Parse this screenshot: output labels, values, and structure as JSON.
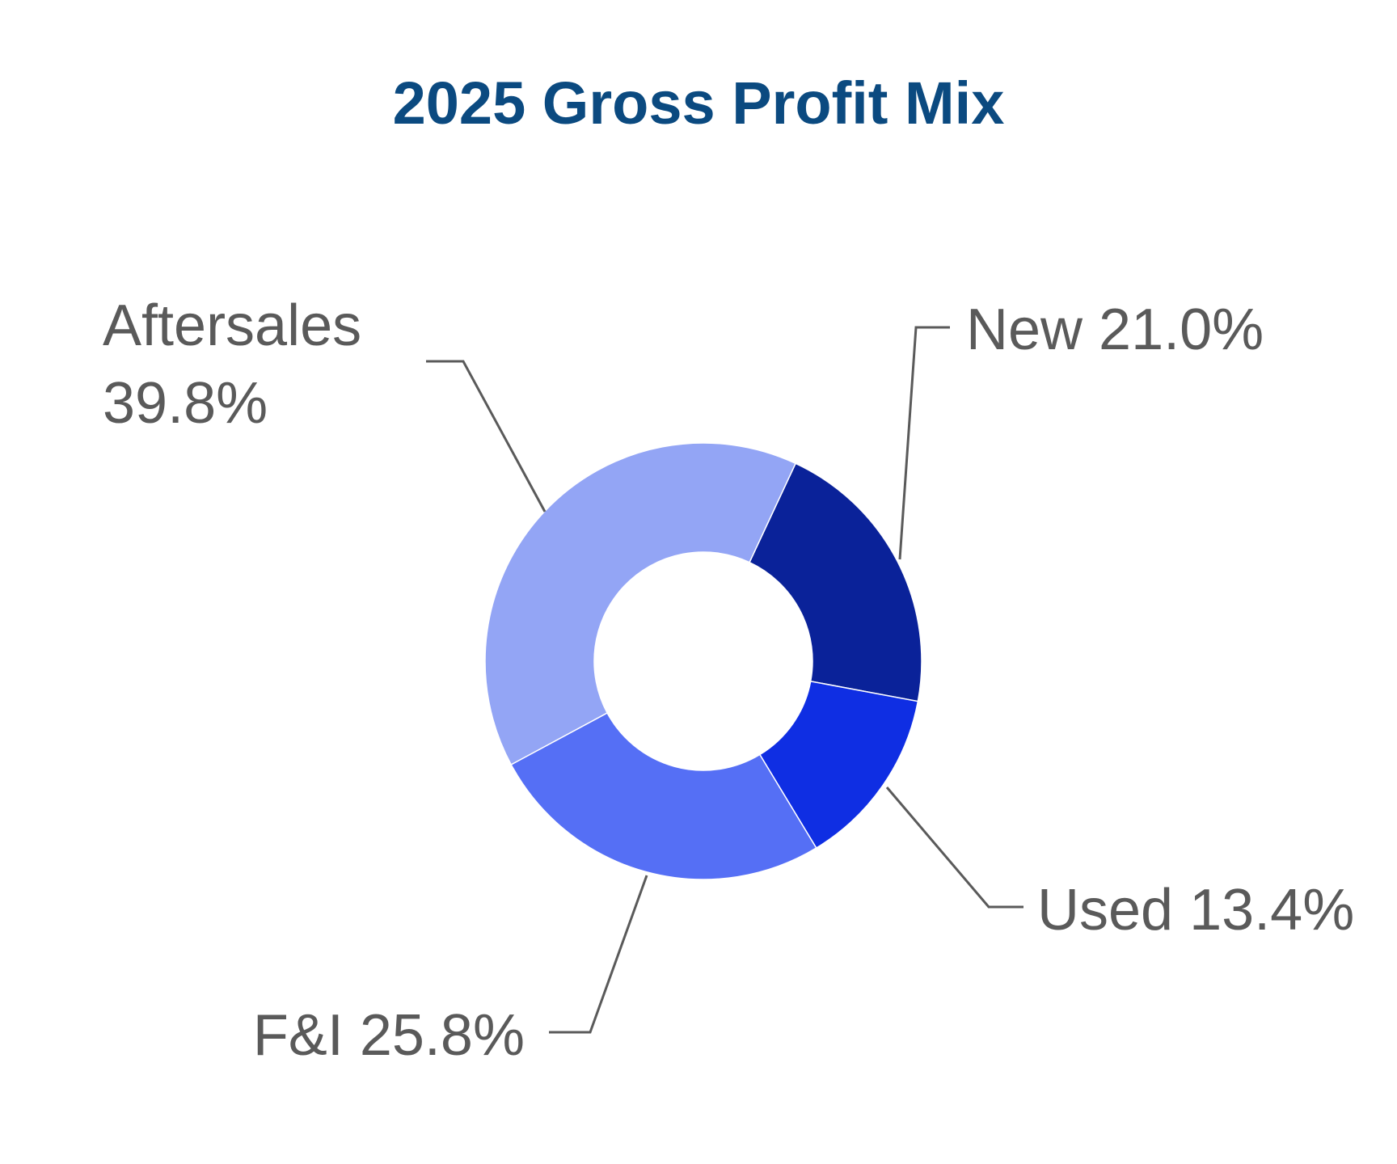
{
  "chart_data": {
    "type": "pie",
    "title": "2025 Gross Profit Mix",
    "title_color": "#0B4A80",
    "label_color": "#5A5A5A",
    "leader_color": "#5A5A5A",
    "slices": [
      {
        "name": "New",
        "value": 21.0,
        "color": "#0A2299",
        "label_lines": [
          "New 21.0%"
        ]
      },
      {
        "name": "Used",
        "value": 13.4,
        "color": "#0F2EE3",
        "label_lines": [
          "Used 13.4%"
        ]
      },
      {
        "name": "F&I",
        "value": 25.8,
        "color": "#556FF5",
        "label_lines": [
          "F&I 25.8%"
        ]
      },
      {
        "name": "Aftersales",
        "value": 39.8,
        "color": "#93A5F5",
        "label_lines": [
          "Aftersales",
          "39.8%"
        ]
      }
    ]
  }
}
